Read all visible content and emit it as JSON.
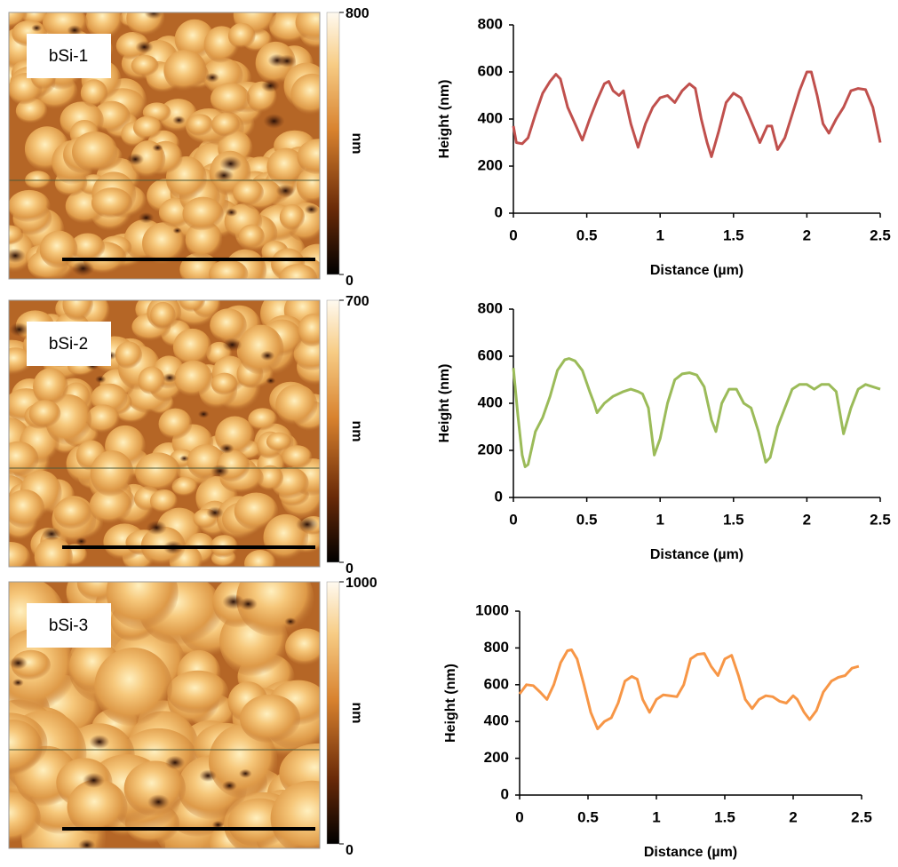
{
  "images": [
    {
      "label": "bSi-1",
      "colorbar": {
        "lim": [
          0,
          800
        ],
        "ticks": [
          0,
          800
        ],
        "unit": "nm"
      }
    },
    {
      "label": "bSi-2",
      "colorbar": {
        "lim": [
          0,
          700
        ],
        "ticks": [
          0,
          700
        ],
        "unit": "nm"
      }
    },
    {
      "label": "bSi-3",
      "colorbar": {
        "lim": [
          0,
          1000
        ],
        "ticks": [
          0,
          1000
        ],
        "unit": "nm"
      }
    }
  ],
  "chart_data": [
    {
      "type": "line",
      "x_label": "Distance (µm)",
      "y_label": "Height (nm)",
      "color": "#c0504d",
      "xlim": [
        0,
        2.5
      ],
      "xticks": [
        0,
        0.5,
        1,
        1.5,
        2,
        2.5
      ],
      "ylim": [
        0,
        800
      ],
      "yticks": [
        0,
        200,
        400,
        600,
        800
      ],
      "x": [
        0,
        0.02,
        0.06,
        0.1,
        0.15,
        0.2,
        0.25,
        0.29,
        0.32,
        0.37,
        0.42,
        0.47,
        0.52,
        0.57,
        0.62,
        0.65,
        0.68,
        0.72,
        0.75,
        0.8,
        0.85,
        0.9,
        0.95,
        1.0,
        1.05,
        1.1,
        1.15,
        1.2,
        1.24,
        1.28,
        1.32,
        1.35,
        1.4,
        1.45,
        1.5,
        1.55,
        1.6,
        1.64,
        1.68,
        1.73,
        1.76,
        1.8,
        1.85,
        1.9,
        1.95,
        2.0,
        2.03,
        2.07,
        2.11,
        2.15,
        2.2,
        2.25,
        2.3,
        2.35,
        2.4,
        2.45,
        2.5
      ],
      "values": [
        370,
        300,
        295,
        320,
        420,
        510,
        560,
        590,
        570,
        450,
        380,
        310,
        400,
        480,
        550,
        560,
        520,
        500,
        520,
        380,
        280,
        380,
        450,
        490,
        500,
        470,
        520,
        550,
        530,
        400,
        300,
        240,
        350,
        470,
        510,
        490,
        420,
        360,
        300,
        370,
        370,
        270,
        320,
        420,
        520,
        600,
        600,
        500,
        380,
        340,
        400,
        450,
        520,
        530,
        525,
        450,
        300
      ]
    },
    {
      "type": "line",
      "x_label": "Distance (µm)",
      "y_label": "Height (nm)",
      "color": "#9bbb59",
      "xlim": [
        0,
        2.5
      ],
      "xticks": [
        0,
        0.5,
        1,
        1.5,
        2,
        2.5
      ],
      "ylim": [
        0,
        800
      ],
      "yticks": [
        0,
        200,
        400,
        600,
        800
      ],
      "x": [
        0,
        0.03,
        0.06,
        0.08,
        0.1,
        0.15,
        0.2,
        0.25,
        0.3,
        0.35,
        0.38,
        0.42,
        0.47,
        0.52,
        0.55,
        0.57,
        0.62,
        0.68,
        0.75,
        0.8,
        0.85,
        0.88,
        0.92,
        0.96,
        1.0,
        1.05,
        1.1,
        1.15,
        1.2,
        1.25,
        1.3,
        1.35,
        1.38,
        1.42,
        1.47,
        1.52,
        1.57,
        1.62,
        1.67,
        1.72,
        1.75,
        1.8,
        1.85,
        1.9,
        1.95,
        2.0,
        2.05,
        2.1,
        2.15,
        2.2,
        2.25,
        2.3,
        2.35,
        2.4,
        2.45,
        2.5
      ],
      "values": [
        550,
        350,
        180,
        130,
        140,
        280,
        340,
        430,
        540,
        585,
        590,
        580,
        540,
        450,
        400,
        360,
        400,
        430,
        450,
        460,
        450,
        440,
        380,
        180,
        250,
        400,
        500,
        525,
        530,
        520,
        470,
        330,
        280,
        400,
        460,
        460,
        400,
        380,
        280,
        150,
        170,
        300,
        380,
        460,
        480,
        480,
        460,
        480,
        480,
        450,
        270,
        380,
        460,
        480,
        470,
        460
      ]
    },
    {
      "type": "line",
      "x_label": "Distance (µm)",
      "y_label": "Height (nm)",
      "color": "#f79646",
      "xlim": [
        0,
        2.5
      ],
      "xticks": [
        0,
        0.5,
        1,
        1.5,
        2,
        2.5
      ],
      "ylim": [
        0,
        1000
      ],
      "yticks": [
        0,
        200,
        400,
        600,
        800,
        1000
      ],
      "x": [
        0,
        0.05,
        0.1,
        0.15,
        0.2,
        0.25,
        0.3,
        0.35,
        0.38,
        0.42,
        0.47,
        0.52,
        0.57,
        0.62,
        0.67,
        0.72,
        0.77,
        0.82,
        0.86,
        0.9,
        0.95,
        1.0,
        1.05,
        1.1,
        1.15,
        1.2,
        1.25,
        1.3,
        1.35,
        1.4,
        1.45,
        1.5,
        1.55,
        1.6,
        1.65,
        1.7,
        1.75,
        1.8,
        1.85,
        1.9,
        1.95,
        2.0,
        2.03,
        2.08,
        2.12,
        2.17,
        2.22,
        2.28,
        2.33,
        2.38,
        2.43,
        2.48
      ],
      "values": [
        550,
        600,
        595,
        560,
        520,
        600,
        720,
        785,
        790,
        740,
        600,
        450,
        360,
        400,
        420,
        500,
        620,
        645,
        630,
        520,
        450,
        520,
        545,
        540,
        535,
        600,
        740,
        765,
        770,
        700,
        650,
        740,
        760,
        650,
        520,
        470,
        520,
        540,
        535,
        510,
        500,
        540,
        520,
        450,
        410,
        460,
        560,
        620,
        640,
        650,
        690,
        700
      ]
    }
  ]
}
